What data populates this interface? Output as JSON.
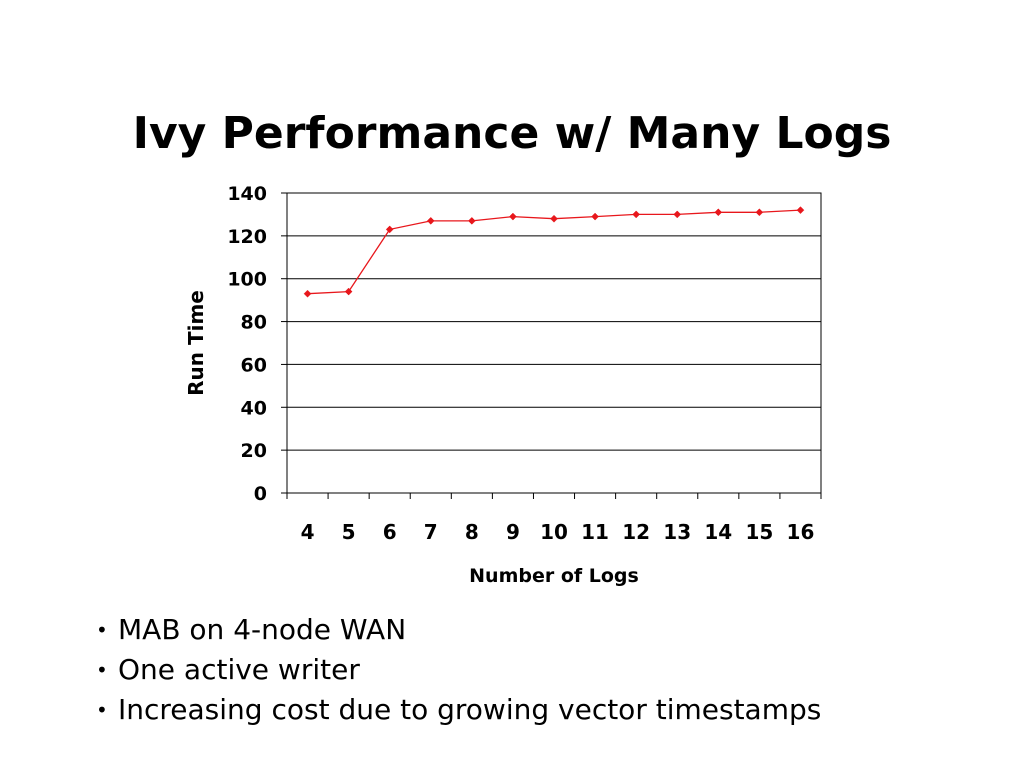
{
  "slide": {
    "title": "Ivy Performance w/ Many Logs",
    "bullet_symbol": "•",
    "bullets": [
      "MAB on 4-node WAN",
      "One active writer",
      "Increasing cost due to growing vector timestamps"
    ]
  },
  "chart_data": {
    "type": "line",
    "title": "",
    "xlabel": "Number of Logs",
    "ylabel": "Run Time",
    "categories": [
      "4",
      "5",
      "6",
      "7",
      "8",
      "9",
      "10",
      "11",
      "12",
      "13",
      "14",
      "15",
      "16"
    ],
    "series": [
      {
        "values": [
          93,
          94,
          123,
          127,
          127,
          129,
          128,
          129,
          130,
          130,
          131,
          131,
          132
        ],
        "color": "#e8171c"
      }
    ],
    "ylim": [
      0,
      140
    ],
    "yticks": [
      0,
      20,
      40,
      60,
      80,
      100,
      120,
      140
    ],
    "grid": true,
    "legend": "none",
    "gridline_color": "#000000"
  }
}
